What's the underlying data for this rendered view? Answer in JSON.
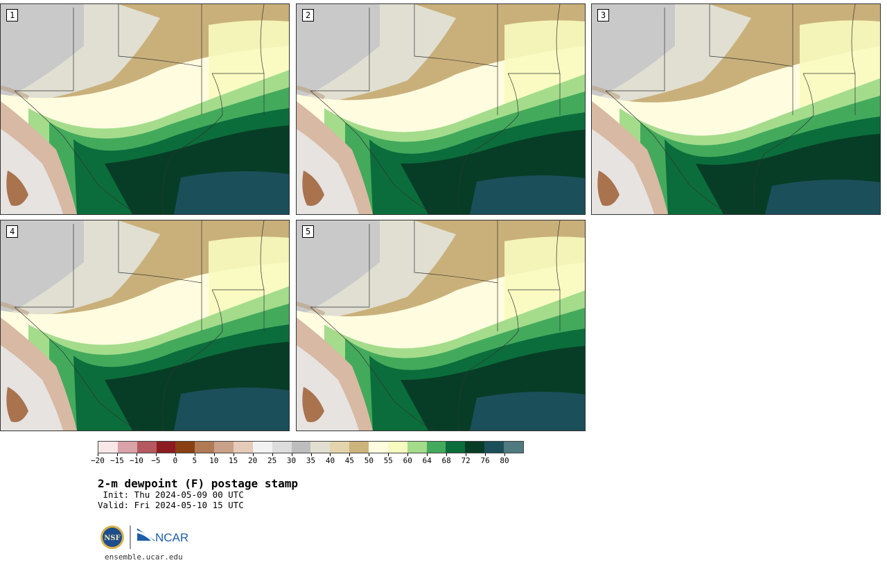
{
  "panels": [
    {
      "label": "1"
    },
    {
      "label": "2"
    },
    {
      "label": "3"
    },
    {
      "label": "4"
    },
    {
      "label": "5"
    }
  ],
  "colorbar": {
    "colors": [
      "#f7e7e7",
      "#d9a1a8",
      "#b5585f",
      "#8c1c22",
      "#8a4012",
      "#b07a55",
      "#c9a088",
      "#e6cbb8",
      "#f2f2f2",
      "#dddddd",
      "#bdbdbd",
      "#e1dfd0",
      "#e3d4ad",
      "#cdb47c",
      "#fffce0",
      "#f8fbbf",
      "#a4dc8c",
      "#43aa5c",
      "#0b6d3b",
      "#073d26",
      "#1b4f5a",
      "#4f7a80"
    ],
    "tick_labels": [
      "−20",
      "−15",
      "−10",
      "−5",
      "0",
      "5",
      "10",
      "15",
      "20",
      "25",
      "30",
      "35",
      "40",
      "45",
      "50",
      "55",
      "60",
      "64",
      "68",
      "72",
      "76",
      "80"
    ]
  },
  "title": "2-m dewpoint (F) postage stamp",
  "init_line": " Init: Thu 2024-05-09 00 UTC",
  "valid_line": "Valid: Fri 2024-05-10 15 UTC",
  "logos": {
    "nsf_text": "NSF",
    "ncar_text": "NCAR"
  },
  "site_url": "ensemble.ucar.edu"
}
